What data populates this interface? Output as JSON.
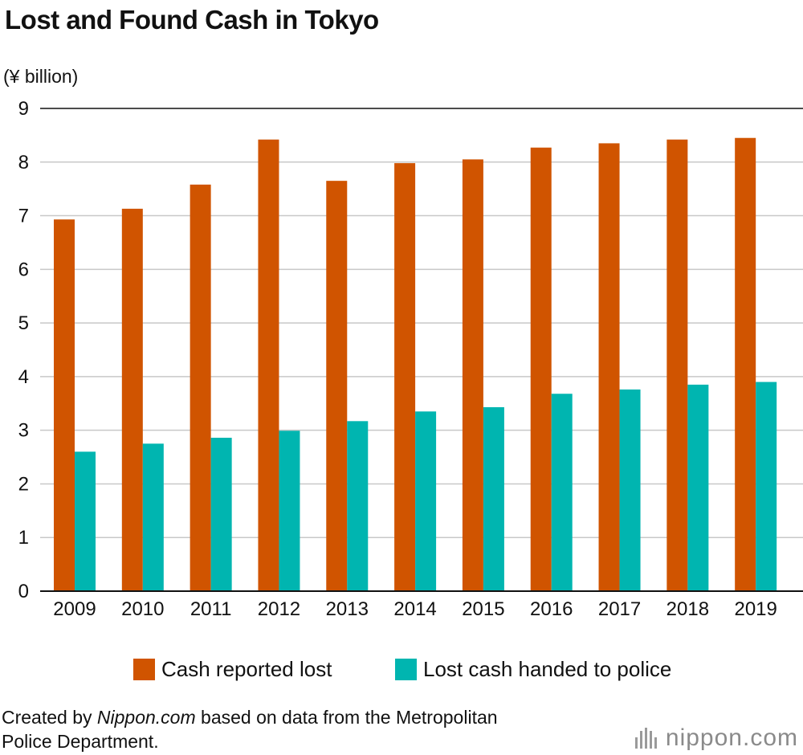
{
  "title": "Lost and Found Cash in Tokyo",
  "unit_label": "(¥ billion)",
  "note": {
    "prefix": "Created by ",
    "site": "Nippon.com",
    "line1_rest": " based on data from the Metropolitan",
    "line2": "Police Department."
  },
  "brand": "nippon.com",
  "colors": {
    "lost": "#d05400",
    "handed": "#00b5b0",
    "grid": "#c8c8c8",
    "axis": "#111111"
  },
  "chart_data": {
    "type": "bar",
    "title": "Lost and Found Cash in Tokyo",
    "ylabel": "(¥ billion)",
    "xlabel": "",
    "ylim": [
      0,
      9
    ],
    "yticks": [
      0,
      1,
      2,
      3,
      4,
      5,
      6,
      7,
      8,
      9
    ],
    "grid": true,
    "legend_position": "bottom",
    "categories": [
      "2009",
      "2010",
      "2011",
      "2012",
      "2013",
      "2014",
      "2015",
      "2016",
      "2017",
      "2018",
      "2019"
    ],
    "series": [
      {
        "name": "Cash reported lost",
        "color": "#d05400",
        "values": [
          6.93,
          7.13,
          7.58,
          8.42,
          7.65,
          7.98,
          8.05,
          8.27,
          8.35,
          8.42,
          8.45
        ]
      },
      {
        "name": "Lost cash handed to police",
        "color": "#00b5b0",
        "values": [
          2.6,
          2.75,
          2.86,
          2.99,
          3.17,
          3.35,
          3.43,
          3.68,
          3.76,
          3.85,
          3.9
        ]
      }
    ]
  }
}
